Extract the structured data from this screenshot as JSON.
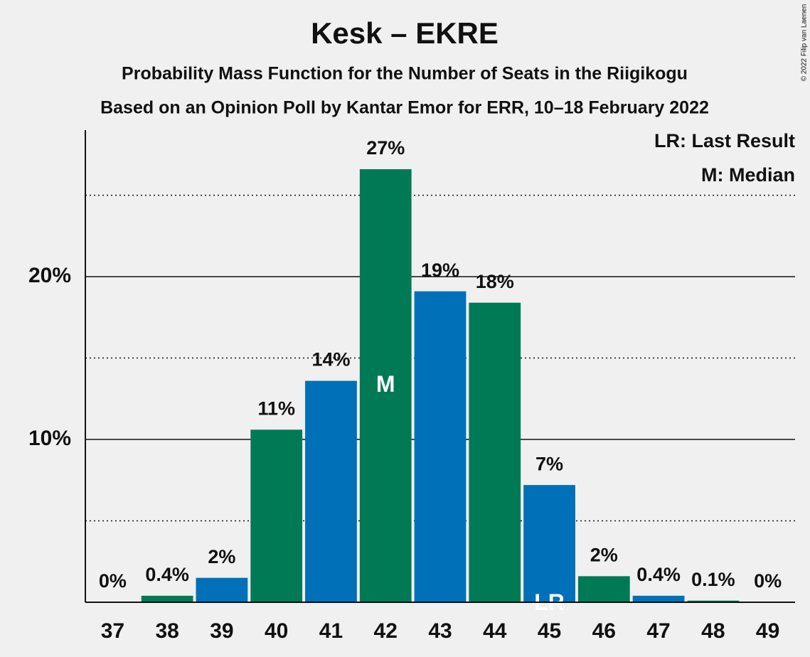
{
  "chart_data": {
    "type": "bar",
    "title": "Kesk – EKRE",
    "subtitle": "Probability Mass Function for the Number of Seats in the Riigikogu",
    "subtitle2": "Based on an Opinion Poll by Kantar Emor for ERR, 10–18 February 2022",
    "copyright": "© 2022 Filip van Laenen",
    "categories": [
      37,
      38,
      39,
      40,
      41,
      42,
      43,
      44,
      45,
      46,
      47,
      48,
      49
    ],
    "values": [
      0,
      0.4,
      1.5,
      10.6,
      13.6,
      26.6,
      19.1,
      18.4,
      7.2,
      1.6,
      0.4,
      0.1,
      0
    ],
    "value_labels": [
      "0%",
      "0.4%",
      "2%",
      "11%",
      "14%",
      "27%",
      "19%",
      "18%",
      "7%",
      "2%",
      "0.4%",
      "0.1%",
      "0%"
    ],
    "colors": [
      "#0070b8",
      "#007a55",
      "#0070b8",
      "#007a55",
      "#0070b8",
      "#007a55",
      "#0070b8",
      "#007a55",
      "#0070b8",
      "#007a55",
      "#0070b8",
      "#007a55",
      "#0070b8"
    ],
    "ylim": [
      0,
      29
    ],
    "yticks": [
      {
        "value": 10,
        "label": "10%"
      },
      {
        "value": 20,
        "label": "20%"
      }
    ],
    "minor_yticks": [
      5,
      15,
      25
    ],
    "annotations": [
      {
        "x": 42,
        "text": "M"
      },
      {
        "x": 45,
        "text": "LR"
      }
    ],
    "legend": [
      "LR: Last Result",
      "M: Median"
    ],
    "legend_position": "top-right"
  }
}
